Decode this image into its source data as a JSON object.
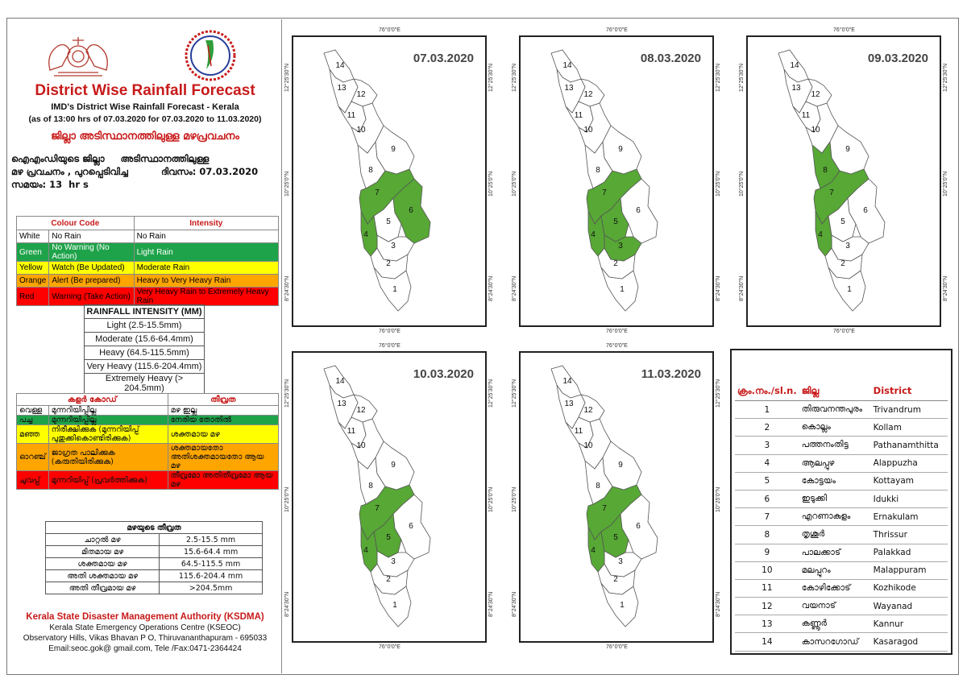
{
  "header": {
    "title": "District Wise Rainfall Forecast",
    "subtitle": "IMD's District Wise Rainfall Forecast - Kerala",
    "period": "(as of 13:00 hrs of 07.03.2020  for 07.03.2020  to 11.03.2020)",
    "title_ml": "ജില്ലാ അടിസ്ഥാനത്തിലുള്ള മഴപ്രവചനം",
    "info_ml_1": "ഐഎംഡിയുടെ ജില്ലാ     അടിസ്ഥാനത്തിലുള്ള",
    "info_ml_2a": "മഴ പ്രവചനം , പുറപ്പെടിവിച്ച",
    "info_ml_2b": "ദിവസം: 07.03.2020",
    "info_ml_3": "സമയം: 13  hr s"
  },
  "colour_code_table": {
    "headers": [
      "Colour Code",
      "Intensity"
    ],
    "rows": [
      {
        "colour": "White",
        "action": "No Rain",
        "intensity": "No Rain",
        "bg": "#ffffff",
        "fg": "#000000"
      },
      {
        "colour": "Green",
        "action": "No Warning (No Action)",
        "intensity": "Light Rain",
        "bg": "#1fa34a",
        "fg": "#ffffff"
      },
      {
        "colour": "Yellow",
        "action": "Watch (Be Updated)",
        "intensity": "Moderate Rain",
        "bg": "#ffff00",
        "fg": "#000000"
      },
      {
        "colour": "Orange",
        "action": "Alert (Be prepared)",
        "intensity": "Heavy to Very Heavy Rain",
        "bg": "#ffa500",
        "fg": "#000000"
      },
      {
        "colour": "Red",
        "action": "Warning (Take Action)",
        "intensity": "Very Heavy Rain to Extremely Heavy Rain",
        "bg": "#ff0000",
        "fg": "#000000"
      }
    ]
  },
  "rainfall_intensity": {
    "title": "RAINFALL INTENSITY (MM)",
    "rows": [
      "Light (2.5-15.5mm)",
      "Moderate (15.6-64.4mm)",
      "Heavy (64.5-115.5mm)",
      "Very Heavy (115.6-204.4mm)",
      "Extremely Heavy (> 204.5mm)"
    ]
  },
  "colour_code_ml": {
    "headers": [
      "കളർ കോഡ്",
      "തീവ്രത"
    ],
    "rows": [
      {
        "colour": "വെള്ള",
        "action": "മുന്നറിയിപ്പില്ല",
        "intensity": "മഴ ഇല്ല",
        "bg": "#ffffff"
      },
      {
        "colour": "പച്ച",
        "action": "മുന്നറിയിപ്പില്ല",
        "intensity": "നേരിയ തോതിൽ",
        "bg": "#1fa34a"
      },
      {
        "colour": "മഞ്ഞ",
        "action": "നിരീക്ഷിക്കുക (മുന്നറിയിപ്പ് പുതുക്കികൊണ്ടിരിക്കുക)",
        "intensity": "ശക്തമായ മഴ",
        "bg": "#ffff00"
      },
      {
        "colour": "ഓറഞ്ച്",
        "action": "ജാഗ്രത പാലിക്കുക (കരുതിയിരിക്കുക)",
        "intensity": "ശക്തമായതോ അതിശക്തമായതോ ആയ മഴ",
        "bg": "#ffa500"
      },
      {
        "colour": "ചുവപ്പ്",
        "action": "മുന്നറിയിപ്പ് (പ്രവർത്തിക്കുക)",
        "intensity": "തീവ്രമോ അതിതീവ്രമോ ആയ മഴ",
        "bg": "#ff0000"
      }
    ]
  },
  "intensity_ml": {
    "title": "മഴയുടെ തീവ്രത",
    "rows": [
      {
        "label": "ചാറ്റൽ മഴ",
        "value": "2.5-15.5 mm"
      },
      {
        "label": "മിതമായ മഴ",
        "value": "15.6-64.4 mm"
      },
      {
        "label": "ശക്തമായ മഴ",
        "value": "64.5-115.5 mm"
      },
      {
        "label": "അതി ശക്തമായ മഴ",
        "value": "115.6-204.4 mm"
      },
      {
        "label": "അതി തീവ്രമായ മഴ",
        "value": ">204.5mm"
      }
    ]
  },
  "footer": {
    "org": "Kerala State Disaster Management Authority (KSDMA)",
    "centre": "Kerala State Emergency Operations Centre (KSEOC)",
    "address": "Observatory Hills, Vikas Bhavan P O, Thiruvananthapuram - 695033",
    "contact": "Email:seoc.gok@ gmail.com, Tele /Fax:0471-2364424"
  },
  "map_labels": {
    "lon": "76°0'0\"E",
    "lat_top": "12°25'30\"N",
    "lat_mid": "10°25'0\"N",
    "lat_bot": "8°24'30\"N"
  },
  "maps": [
    {
      "date": "07.03.2020",
      "green_districts": [
        4,
        6,
        7
      ]
    },
    {
      "date": "08.03.2020",
      "green_districts": [
        3,
        4,
        5,
        7
      ]
    },
    {
      "date": "09.03.2020",
      "green_districts": [
        4,
        7,
        8
      ]
    },
    {
      "date": "10.03.2020",
      "green_districts": [
        4,
        5,
        7
      ]
    },
    {
      "date": "11.03.2020",
      "green_districts": [
        4,
        5,
        7
      ]
    }
  ],
  "colors": {
    "green": "#57a835",
    "white": "#ffffff",
    "border": "#555555"
  },
  "district_table": {
    "headers": [
      "ക്രം.നം./sl.n.",
      "ജില്ല",
      "District"
    ],
    "rows": [
      [
        "1",
        "തിരുവനന്തപുരം",
        "Trivandrum"
      ],
      [
        "2",
        "കൊല്ലം",
        "Kollam"
      ],
      [
        "3",
        "പത്തനംതിട്ട",
        "Pathanamthitta"
      ],
      [
        "4",
        "ആലപ്പുഴ",
        "Alappuzha"
      ],
      [
        "5",
        "കോട്ടയം",
        "Kottayam"
      ],
      [
        "6",
        "ഇടുക്കി",
        "Idukki"
      ],
      [
        "7",
        "എറണാകുളം",
        "Ernakulam"
      ],
      [
        "8",
        "തൃശൂർ",
        "Thrissur"
      ],
      [
        "9",
        "പാലക്കാട്",
        "Palakkad"
      ],
      [
        "10",
        "മലപ്പുറം",
        "Malappuram"
      ],
      [
        "11",
        "കോഴിക്കോട്",
        "Kozhikode"
      ],
      [
        "12",
        "വയനാട്",
        "Wayanad"
      ],
      [
        "13",
        "കണ്ണൂർ",
        "Kannur"
      ],
      [
        "14",
        "കാസറഗോഡ്",
        "Kasaragod"
      ]
    ]
  }
}
